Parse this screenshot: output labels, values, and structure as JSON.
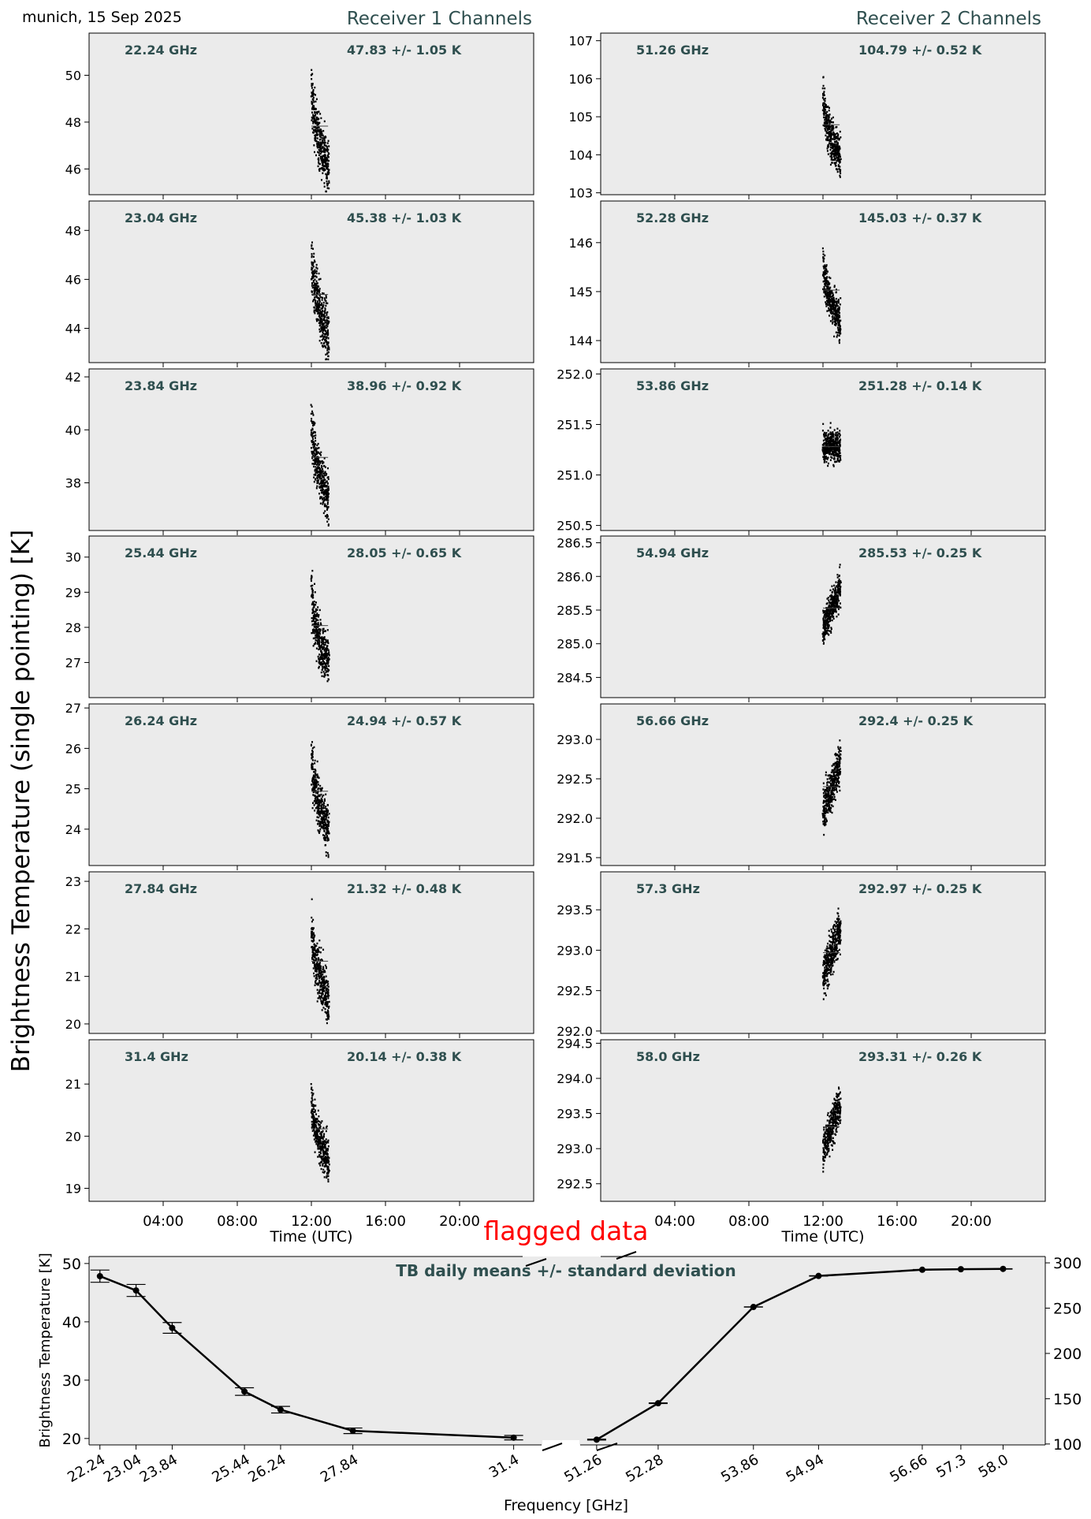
{
  "header": {
    "location_date": "munich, 15 Sep 2025",
    "receiver1_title": "Receiver 1 Channels",
    "receiver2_title": "Receiver 2 Channels",
    "y_axis_label": "Brightness Temperature (single pointing) [K]",
    "flag_label": "flagged data"
  },
  "colors": {
    "panel_bg": "#ebebeb",
    "annotation": "#2f4f4f",
    "data": "#000000",
    "flag": "#ff0000"
  },
  "chart_data": [
    {
      "type": "scatter",
      "group": "receiver1",
      "xlabel": "Time (UTC)",
      "x_ticks": [
        "04:00",
        "08:00",
        "12:00",
        "16:00",
        "20:00"
      ],
      "panels": [
        {
          "freq_label": "22.24 GHz",
          "stat_label": "47.83 +/- 1.05 K",
          "mean": 47.83,
          "std": 1.05,
          "ylim": [
            44.9,
            51.8
          ],
          "yticks": [
            46,
            48,
            50
          ],
          "ytick_labels": [
            "46",
            "48",
            "50"
          ],
          "trend": "down"
        },
        {
          "freq_label": "23.04 GHz",
          "stat_label": "45.38 +/- 1.03 K",
          "mean": 45.38,
          "std": 1.03,
          "ylim": [
            42.6,
            49.2
          ],
          "yticks": [
            44,
            46,
            48
          ],
          "ytick_labels": [
            "44",
            "46",
            "48"
          ],
          "trend": "down"
        },
        {
          "freq_label": "23.84 GHz",
          "stat_label": "38.96 +/- 0.92 K",
          "mean": 38.96,
          "std": 0.92,
          "ylim": [
            36.2,
            42.3
          ],
          "yticks": [
            38,
            40,
            42
          ],
          "ytick_labels": [
            "38",
            "40",
            "42"
          ],
          "trend": "down"
        },
        {
          "freq_label": "25.44 GHz",
          "stat_label": "28.05 +/- 0.65 K",
          "mean": 28.05,
          "std": 0.65,
          "ylim": [
            26.0,
            30.6
          ],
          "yticks": [
            27,
            28,
            29,
            30
          ],
          "ytick_labels": [
            "27",
            "28",
            "29",
            "30"
          ],
          "trend": "down"
        },
        {
          "freq_label": "26.24 GHz",
          "stat_label": "24.94 +/- 0.57 K",
          "mean": 24.94,
          "std": 0.57,
          "ylim": [
            23.1,
            27.1
          ],
          "yticks": [
            24,
            25,
            26,
            27
          ],
          "ytick_labels": [
            "24",
            "25",
            "26",
            "27"
          ],
          "trend": "down"
        },
        {
          "freq_label": "27.84 GHz",
          "stat_label": "21.32 +/- 0.48 K",
          "mean": 21.32,
          "std": 0.48,
          "ylim": [
            19.8,
            23.2
          ],
          "yticks": [
            20,
            21,
            22,
            23
          ],
          "ytick_labels": [
            "20",
            "21",
            "22",
            "23"
          ],
          "trend": "down"
        },
        {
          "freq_label": "31.4 GHz",
          "stat_label": "20.14 +/- 0.38 K",
          "mean": 20.14,
          "std": 0.38,
          "ylim": [
            18.75,
            21.85
          ],
          "yticks": [
            19,
            20,
            21
          ],
          "ytick_labels": [
            "19",
            "20",
            "21"
          ],
          "trend": "down"
        }
      ]
    },
    {
      "type": "scatter",
      "group": "receiver2",
      "xlabel": "Time (UTC)",
      "x_ticks": [
        "04:00",
        "08:00",
        "12:00",
        "16:00",
        "20:00"
      ],
      "panels": [
        {
          "freq_label": "51.26 GHz",
          "stat_label": "104.79 +/- 0.52 K",
          "mean": 104.79,
          "std": 0.52,
          "ylim": [
            102.95,
            107.2
          ],
          "yticks": [
            103,
            104,
            105,
            106,
            107
          ],
          "ytick_labels": [
            "103",
            "104",
            "105",
            "106",
            "107"
          ],
          "trend": "down"
        },
        {
          "freq_label": "52.28 GHz",
          "stat_label": "145.03 +/- 0.37 K",
          "mean": 145.03,
          "std": 0.37,
          "ylim": [
            143.55,
            146.85
          ],
          "yticks": [
            144,
            145,
            146
          ],
          "ytick_labels": [
            "144",
            "145",
            "146"
          ],
          "trend": "down"
        },
        {
          "freq_label": "53.86 GHz",
          "stat_label": "251.28 +/- 0.14 K",
          "mean": 251.28,
          "std": 0.14,
          "ylim": [
            250.45,
            252.05
          ],
          "yticks": [
            250.5,
            251.0,
            251.5,
            252.0
          ],
          "ytick_labels": [
            "250.5",
            "251.0",
            "251.5",
            "252.0"
          ],
          "trend": "flat"
        },
        {
          "freq_label": "54.94 GHz",
          "stat_label": "285.53 +/- 0.25 K",
          "mean": 285.53,
          "std": 0.25,
          "ylim": [
            284.2,
            286.6
          ],
          "yticks": [
            284.5,
            285.0,
            285.5,
            286.0,
            286.5
          ],
          "ytick_labels": [
            "284.5",
            "285.0",
            "285.5",
            "286.0",
            "286.5"
          ],
          "trend": "up"
        },
        {
          "freq_label": "56.66 GHz",
          "stat_label": "292.4 +/- 0.25 K",
          "mean": 292.4,
          "std": 0.25,
          "ylim": [
            291.4,
            293.45
          ],
          "yticks": [
            291.5,
            292.0,
            292.5,
            293.0
          ],
          "ytick_labels": [
            "291.5",
            "292.0",
            "292.5",
            "293.0"
          ],
          "trend": "up"
        },
        {
          "freq_label": "57.3 GHz",
          "stat_label": "292.97 +/- 0.25 K",
          "mean": 292.97,
          "std": 0.25,
          "ylim": [
            291.97,
            293.97
          ],
          "yticks": [
            292.0,
            292.5,
            293.0,
            293.5
          ],
          "ytick_labels": [
            "292.0",
            "292.5",
            "293.0",
            "293.5"
          ],
          "trend": "up"
        },
        {
          "freq_label": "58.0 GHz",
          "stat_label": "293.31 +/- 0.26 K",
          "mean": 293.31,
          "std": 0.26,
          "ylim": [
            292.25,
            294.55
          ],
          "yticks": [
            292.5,
            293.0,
            293.5,
            294.0,
            294.5
          ],
          "ytick_labels": [
            "292.5",
            "293.0",
            "293.5",
            "294.0",
            "294.5"
          ],
          "trend": "up"
        }
      ]
    },
    {
      "type": "line",
      "group": "summary",
      "title": "TB daily means +/- standard deviation",
      "xlabel": "Frequency [GHz]",
      "ylabel": "Brightness Temperature [K]",
      "left": {
        "x": [
          22.24,
          23.04,
          23.84,
          25.44,
          26.24,
          27.84,
          31.4
        ],
        "x_labels": [
          "22.24",
          "23.04",
          "23.84",
          "25.44",
          "26.24",
          "27.84",
          "31.4"
        ],
        "values": [
          47.83,
          45.38,
          38.96,
          28.05,
          24.94,
          21.32,
          20.14
        ],
        "std": [
          1.05,
          1.03,
          0.92,
          0.65,
          0.57,
          0.48,
          0.38
        ],
        "xlim": [
          22.0,
          32.0
        ],
        "ylim": [
          18.9,
          51.2
        ],
        "yticks": [
          20,
          30,
          40,
          50
        ],
        "ytick_labels": [
          "20",
          "30",
          "40",
          "50"
        ]
      },
      "right": {
        "x": [
          51.26,
          52.28,
          53.86,
          54.94,
          56.66,
          57.3,
          58.0
        ],
        "x_labels": [
          "51.26",
          "52.28",
          "53.86",
          "54.94",
          "56.66",
          "57.3",
          "58.0"
        ],
        "values": [
          104.79,
          145.03,
          251.28,
          285.53,
          292.4,
          292.97,
          293.31
        ],
        "std": [
          0.52,
          0.37,
          0.14,
          0.25,
          0.25,
          0.25,
          0.26
        ],
        "xlim": [
          51.0,
          58.7
        ],
        "ylim": [
          99.0,
          307.0
        ],
        "yticks": [
          100,
          150,
          200,
          250,
          300
        ],
        "ytick_labels": [
          "100",
          "150",
          "200",
          "250",
          "300"
        ]
      }
    }
  ]
}
